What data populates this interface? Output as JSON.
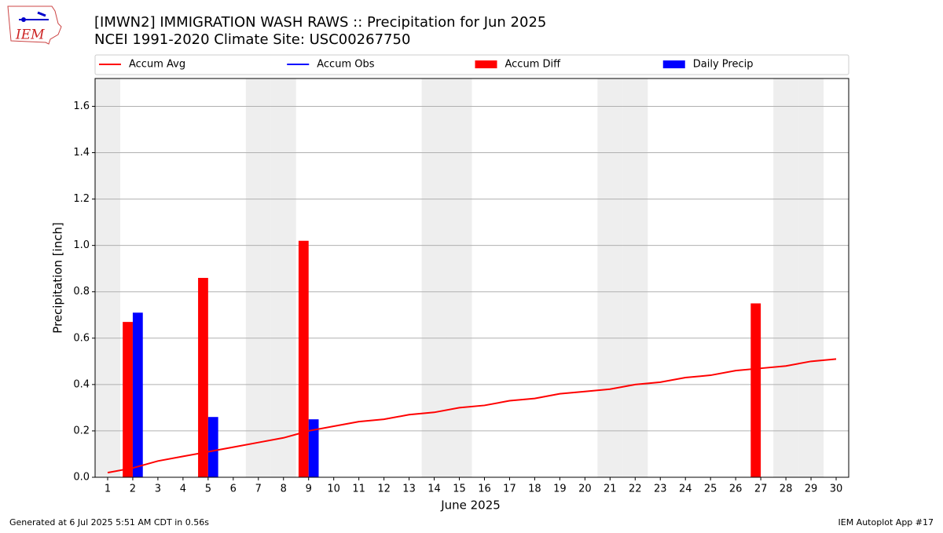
{
  "chart_data": {
    "type": "combo",
    "title": "[IMWN2] IMMIGRATION WASH RAWS :: Precipitation for Jun 2025",
    "subtitle": "NCEI 1991-2020 Climate Site: USC00267750",
    "xlabel": "June 2025",
    "ylabel": "Precipitation [inch]",
    "logo": "IEM",
    "footer_left": "Generated at 6 Jul 2025 5:51 AM CDT in 0.56s",
    "footer_right": "IEM Autoplot App #17",
    "x": [
      1,
      2,
      3,
      4,
      5,
      6,
      7,
      8,
      9,
      10,
      11,
      12,
      13,
      14,
      15,
      16,
      17,
      18,
      19,
      20,
      21,
      22,
      23,
      24,
      25,
      26,
      27,
      28,
      29,
      30
    ],
    "xlim": [
      0.5,
      30.5
    ],
    "xticks": [
      1,
      2,
      3,
      4,
      5,
      6,
      7,
      8,
      9,
      10,
      11,
      12,
      13,
      14,
      15,
      16,
      17,
      18,
      19,
      20,
      21,
      22,
      23,
      24,
      25,
      26,
      27,
      28,
      29,
      30
    ],
    "ylim": [
      0,
      1.72
    ],
    "yticks": [
      {
        "value": 0,
        "label": "0.0"
      },
      {
        "value": 0.2,
        "label": "0.2"
      },
      {
        "value": 0.4,
        "label": "0.4"
      },
      {
        "value": 0.6,
        "label": "0.6"
      },
      {
        "value": 0.8,
        "label": "0.8"
      },
      {
        "value": 1.0,
        "label": "1.0"
      },
      {
        "value": 1.2,
        "label": "1.2"
      },
      {
        "value": 1.4,
        "label": "1.4"
      },
      {
        "value": 1.6,
        "label": "1.6"
      }
    ],
    "grid": true,
    "legend": "top",
    "series": [
      {
        "name": "Accum Avg",
        "type": "line",
        "color": "#ff0000",
        "values": [
          0.02,
          0.04,
          0.07,
          0.09,
          0.11,
          0.13,
          0.15,
          0.17,
          0.2,
          0.22,
          0.24,
          0.25,
          0.27,
          0.28,
          0.3,
          0.31,
          0.33,
          0.34,
          0.36,
          0.37,
          0.38,
          0.4,
          0.41,
          0.43,
          0.44,
          0.46,
          0.47,
          0.48,
          0.5,
          0.51
        ]
      },
      {
        "name": "Accum Obs",
        "type": "line",
        "color": "#0000ff",
        "values": [
          null,
          null,
          null,
          null,
          null,
          null,
          null,
          null,
          null,
          null,
          null,
          null,
          null,
          null,
          null,
          null,
          null,
          null,
          null,
          null,
          null,
          null,
          null,
          null,
          null,
          null,
          null,
          null,
          null,
          null
        ]
      },
      {
        "name": "Accum Diff",
        "type": "bar",
        "color": "#ff0000",
        "values": [
          0,
          0.67,
          0,
          0,
          0.86,
          0,
          0,
          0,
          1.02,
          0,
          0,
          0,
          0,
          0,
          0,
          0,
          0,
          0,
          0,
          0,
          0,
          0,
          0,
          0,
          0,
          0,
          0.75,
          0,
          0,
          0
        ]
      },
      {
        "name": "Daily Precip",
        "type": "bar",
        "color": "#0000ff",
        "values": [
          0,
          0.71,
          0,
          0,
          0.26,
          0,
          0,
          0,
          0.25,
          0,
          0,
          0,
          0,
          0,
          0,
          0,
          0,
          0,
          0,
          0,
          0,
          0,
          0,
          0,
          0,
          0,
          0,
          0,
          0,
          0
        ]
      }
    ]
  }
}
